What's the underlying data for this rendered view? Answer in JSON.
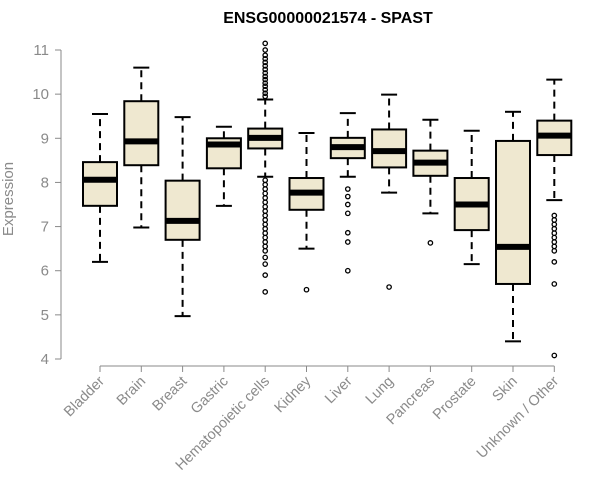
{
  "chart_data": {
    "type": "boxplot",
    "title": "ENSG00000021574 - SPAST",
    "xlabel": "",
    "ylabel": "Expression",
    "ylim": [
      4,
      11
    ],
    "yticks": [
      4,
      5,
      6,
      7,
      8,
      9,
      10,
      11
    ],
    "grid": false,
    "legend": "none",
    "box_fill": "#efe8d0",
    "box_stroke": "#000000",
    "median_color": "#000000",
    "categories": [
      "Bladder",
      "Brain",
      "Breast",
      "Gastric",
      "Hematopoietic cells",
      "Kidney",
      "Liver",
      "Lung",
      "Pancreas",
      "Prostate",
      "Skin",
      "Unknown / Other"
    ],
    "boxes": [
      {
        "name": "Bladder",
        "whisker_low": 6.2,
        "q1": 7.47,
        "median": 8.06,
        "q3": 8.46,
        "whisker_high": 9.55,
        "outliers": []
      },
      {
        "name": "Brain",
        "whisker_low": 6.98,
        "q1": 8.39,
        "median": 8.93,
        "q3": 9.84,
        "whisker_high": 10.6,
        "outliers": []
      },
      {
        "name": "Breast",
        "whisker_low": 4.97,
        "q1": 6.7,
        "median": 7.13,
        "q3": 8.04,
        "whisker_high": 9.48,
        "outliers": []
      },
      {
        "name": "Gastric",
        "whisker_low": 7.47,
        "q1": 8.32,
        "median": 8.86,
        "q3": 9.0,
        "whisker_high": 9.26,
        "outliers": []
      },
      {
        "name": "Hematopoietic cells",
        "whisker_low": 8.13,
        "q1": 8.77,
        "median": 9.01,
        "q3": 9.22,
        "whisker_high": 9.88,
        "outliers": [
          11.15,
          11.0,
          10.88,
          10.8,
          10.72,
          10.64,
          10.56,
          10.48,
          10.4,
          10.33,
          10.25,
          10.18,
          10.1,
          10.02,
          9.95,
          8.05,
          7.95,
          7.85,
          7.75,
          7.65,
          7.55,
          7.45,
          7.35,
          7.25,
          7.15,
          7.05,
          6.95,
          6.85,
          6.75,
          6.65,
          6.55,
          6.45,
          6.3,
          6.15,
          5.9,
          5.52
        ]
      },
      {
        "name": "Kidney",
        "whisker_low": 6.5,
        "q1": 7.38,
        "median": 7.77,
        "q3": 8.1,
        "whisker_high": 9.12,
        "outliers": [
          5.57
        ]
      },
      {
        "name": "Liver",
        "whisker_low": 8.13,
        "q1": 8.55,
        "median": 8.8,
        "q3": 9.01,
        "whisker_high": 9.57,
        "outliers": [
          7.85,
          7.68,
          7.5,
          7.3,
          6.86,
          6.65,
          6.0
        ]
      },
      {
        "name": "Lung",
        "whisker_low": 7.77,
        "q1": 8.34,
        "median": 8.71,
        "q3": 9.2,
        "whisker_high": 9.99,
        "outliers": [
          5.63
        ]
      },
      {
        "name": "Pancreas",
        "whisker_low": 7.3,
        "q1": 8.15,
        "median": 8.45,
        "q3": 8.72,
        "whisker_high": 9.42,
        "outliers": [
          6.63
        ]
      },
      {
        "name": "Prostate",
        "whisker_low": 6.15,
        "q1": 6.92,
        "median": 7.5,
        "q3": 8.1,
        "whisker_high": 9.17,
        "outliers": []
      },
      {
        "name": "Skin",
        "whisker_low": 4.4,
        "q1": 5.7,
        "median": 6.54,
        "q3": 8.94,
        "whisker_high": 9.6,
        "outliers": []
      },
      {
        "name": "Unknown / Other",
        "whisker_low": 7.6,
        "q1": 8.62,
        "median": 9.06,
        "q3": 9.4,
        "whisker_high": 10.33,
        "outliers": [
          7.25,
          7.15,
          7.05,
          6.95,
          6.85,
          6.75,
          6.65,
          6.55,
          6.45,
          6.2,
          5.7,
          4.08
        ]
      }
    ]
  }
}
